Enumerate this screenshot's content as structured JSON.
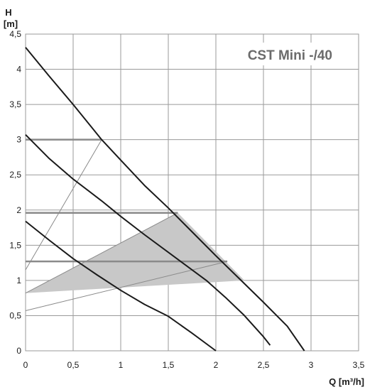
{
  "chart_data": {
    "type": "line",
    "title": "CST Mini -/40",
    "xlabel": "Q [m³/h]",
    "ylabel_line1": "H",
    "ylabel_line2": "[m]",
    "xlim": [
      0,
      3.5
    ],
    "ylim": [
      0,
      4.5
    ],
    "x_ticks": [
      {
        "value": 0,
        "label": "0"
      },
      {
        "value": 0.5,
        "label": "0,5"
      },
      {
        "value": 1,
        "label": "1"
      },
      {
        "value": 1.5,
        "label": "1,5"
      },
      {
        "value": 2,
        "label": "2"
      },
      {
        "value": 2.5,
        "label": "2,5"
      },
      {
        "value": 3,
        "label": "3"
      },
      {
        "value": 3.5,
        "label": "3,5"
      }
    ],
    "y_ticks": [
      {
        "value": 0,
        "label": "0"
      },
      {
        "value": 0.5,
        "label": "0,5"
      },
      {
        "value": 1,
        "label": "1"
      },
      {
        "value": 1.5,
        "label": "1,5"
      },
      {
        "value": 2,
        "label": "2"
      },
      {
        "value": 2.5,
        "label": "2,5"
      },
      {
        "value": 3,
        "label": "3"
      },
      {
        "value": 3.5,
        "label": "3,5"
      },
      {
        "value": 4,
        "label": "4"
      },
      {
        "value": 4.5,
        "label": "4,5"
      }
    ],
    "grid": true,
    "colors": {
      "curve": "#1a1a1a",
      "grid": "#9a9a9a",
      "region": "#c8c8c8",
      "region_line": "#8a8a8a",
      "title": "#6b6b6b"
    },
    "pump_curves": [
      {
        "x": [
          0,
          0.25,
          0.5,
          0.8,
          1.0,
          1.25,
          1.5,
          1.75,
          2.0,
          2.25,
          2.5,
          2.75,
          2.93
        ],
        "y": [
          4.31,
          3.9,
          3.5,
          3.0,
          2.71,
          2.35,
          2.03,
          1.69,
          1.35,
          1.02,
          0.69,
          0.35,
          0.0
        ]
      },
      {
        "x": [
          0,
          0.25,
          0.5,
          0.8,
          1.0,
          1.25,
          1.6,
          1.9,
          2.1,
          2.3,
          2.5,
          2.57
        ],
        "y": [
          3.07,
          2.73,
          2.44,
          2.13,
          1.91,
          1.65,
          1.3,
          1.0,
          0.76,
          0.5,
          0.2,
          0.08
        ]
      },
      {
        "x": [
          0,
          0.25,
          0.5,
          0.75,
          1.0,
          1.25,
          1.5,
          1.75,
          2.0
        ],
        "y": [
          1.84,
          1.57,
          1.31,
          1.08,
          0.86,
          0.66,
          0.49,
          0.25,
          0.0
        ]
      }
    ],
    "setpoint_lines": [
      {
        "y": 3.0,
        "x_end": 0.8,
        "x_start_at_zero_h": 1.15
      },
      {
        "y": 1.96,
        "x_end": 1.6,
        "x_start_at_zero_h": 0.82
      },
      {
        "y": 1.27,
        "x_end": 2.12,
        "x_start_at_zero_h": 0.57
      }
    ],
    "shaded_region": {
      "x": [
        0,
        1.6,
        2.3,
        0
      ],
      "y": [
        0.82,
        1.96,
        1.0,
        0.82
      ]
    }
  }
}
